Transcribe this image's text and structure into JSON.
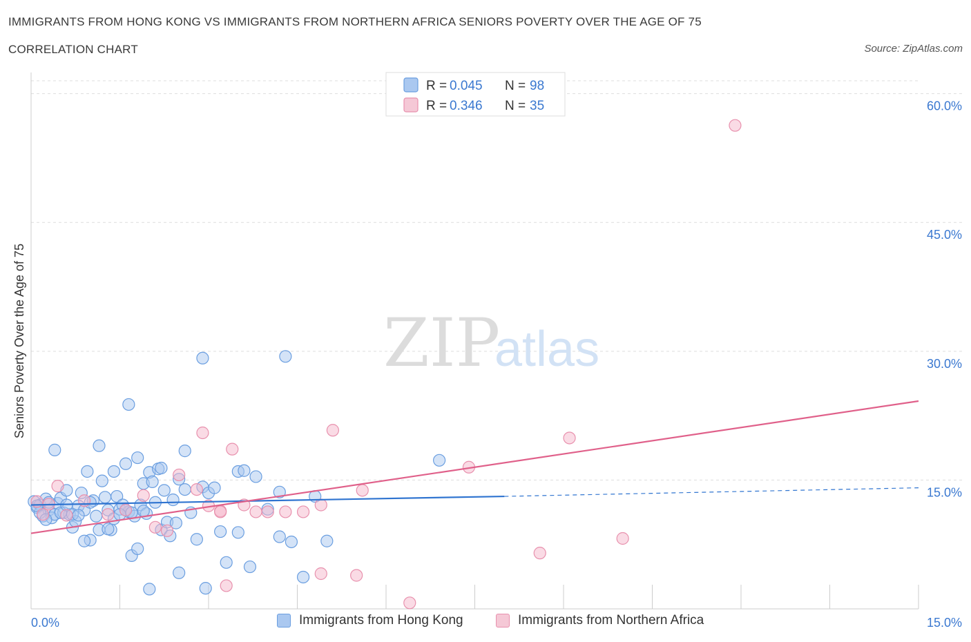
{
  "header": {
    "title": "IMMIGRANTS FROM HONG KONG VS IMMIGRANTS FROM NORTHERN AFRICA SENIORS POVERTY OVER THE AGE OF 75",
    "subtitle": "CORRELATION CHART",
    "source": "Source: ZipAtlas.com"
  },
  "watermark": {
    "zip": "ZIP",
    "atlas": "atlas"
  },
  "legend_top": [
    {
      "r_label": "R = ",
      "r_value": "0.045",
      "n_label": "N = ",
      "n_value": "98"
    },
    {
      "r_label": "R = ",
      "r_value": "0.346",
      "n_label": "N = ",
      "n_value": "35"
    }
  ],
  "legend_bottom": [
    {
      "label": "Immigrants from Hong Kong"
    },
    {
      "label": "Immigrants from Northern Africa"
    }
  ],
  "colors": {
    "blue_fill": "#aac8f0",
    "blue_stroke": "#6a9ee0",
    "blue_line": "#2f74d0",
    "pink_fill": "#f5b8cb",
    "pink_stroke": "#e890ad",
    "pink_line": "#e0608a",
    "axis_text": "#3a78d0",
    "grid": "#dddddd"
  },
  "chart_data": {
    "type": "scatter",
    "title": "IMMIGRANTS FROM HONG KONG VS IMMIGRANTS FROM NORTHERN AFRICA SENIORS POVERTY OVER THE AGE OF 75",
    "xlabel": "",
    "ylabel": "Seniors Poverty Over the Age of 75",
    "xlim": [
      0,
      15
    ],
    "ylim": [
      0,
      60
    ],
    "x_tick_labels": [
      "0.0%",
      "15.0%"
    ],
    "y_ticks": [
      15,
      30,
      45,
      60
    ],
    "y_tick_labels": [
      "15.0%",
      "30.0%",
      "45.0%",
      "60.0%"
    ],
    "grid": true,
    "legend_position": "top-center",
    "series": [
      {
        "name": "Immigrants from Hong Kong",
        "points": [
          [
            0.05,
            12.5
          ],
          [
            0.1,
            11.8
          ],
          [
            0.15,
            12.1
          ],
          [
            0.2,
            10.8
          ],
          [
            0.25,
            12.8
          ],
          [
            0.3,
            11.5
          ],
          [
            0.35,
            10.6
          ],
          [
            0.4,
            11.0
          ],
          [
            0.45,
            12.3
          ],
          [
            0.5,
            12.9
          ],
          [
            0.55,
            11.2
          ],
          [
            0.6,
            13.8
          ],
          [
            0.65,
            11.0
          ],
          [
            0.7,
            9.5
          ],
          [
            0.75,
            10.2
          ],
          [
            0.8,
            12.0
          ],
          [
            0.85,
            13.5
          ],
          [
            0.9,
            11.5
          ],
          [
            0.95,
            16.0
          ],
          [
            1.0,
            8.0
          ],
          [
            1.05,
            12.6
          ],
          [
            1.1,
            10.8
          ],
          [
            1.15,
            9.2
          ],
          [
            1.2,
            14.9
          ],
          [
            1.25,
            13.0
          ],
          [
            1.3,
            11.5
          ],
          [
            1.35,
            9.2
          ],
          [
            1.4,
            10.5
          ],
          [
            1.45,
            13.1
          ],
          [
            1.5,
            11.6
          ],
          [
            1.55,
            12.1
          ],
          [
            1.6,
            16.9
          ],
          [
            1.65,
            11.3
          ],
          [
            1.7,
            6.2
          ],
          [
            1.75,
            10.8
          ],
          [
            1.8,
            7.0
          ],
          [
            1.85,
            12.1
          ],
          [
            1.9,
            14.6
          ],
          [
            1.95,
            11.1
          ],
          [
            2.0,
            15.9
          ],
          [
            2.05,
            14.8
          ],
          [
            2.1,
            12.4
          ],
          [
            2.15,
            16.3
          ],
          [
            2.2,
            9.2
          ],
          [
            2.25,
            13.8
          ],
          [
            2.3,
            10.1
          ],
          [
            2.35,
            8.5
          ],
          [
            2.4,
            12.7
          ],
          [
            2.5,
            15.1
          ],
          [
            2.6,
            13.9
          ],
          [
            2.7,
            11.2
          ],
          [
            2.8,
            8.1
          ],
          [
            2.9,
            14.2
          ],
          [
            3.0,
            13.5
          ],
          [
            3.1,
            14.1
          ],
          [
            3.2,
            9.0
          ],
          [
            3.3,
            5.4
          ],
          [
            3.5,
            16.0
          ],
          [
            3.7,
            4.9
          ],
          [
            3.8,
            15.4
          ],
          [
            4.0,
            11.6
          ],
          [
            4.2,
            13.6
          ],
          [
            4.4,
            7.8
          ],
          [
            4.6,
            3.7
          ],
          [
            4.8,
            13.1
          ],
          [
            5.0,
            7.9
          ],
          [
            6.9,
            17.3
          ],
          [
            4.3,
            29.4
          ],
          [
            2.9,
            29.2
          ],
          [
            1.65,
            23.8
          ],
          [
            0.4,
            18.5
          ],
          [
            1.15,
            19.0
          ],
          [
            2.6,
            18.4
          ],
          [
            1.8,
            17.6
          ],
          [
            1.4,
            16.0
          ],
          [
            3.6,
            16.1
          ],
          [
            2.0,
            2.3
          ],
          [
            2.95,
            2.4
          ],
          [
            2.5,
            4.2
          ],
          [
            0.15,
            11.2
          ],
          [
            0.25,
            10.4
          ],
          [
            0.5,
            11.2
          ],
          [
            0.7,
            11.0
          ],
          [
            0.9,
            7.9
          ],
          [
            1.3,
            9.3
          ],
          [
            1.6,
            11.5
          ],
          [
            1.9,
            11.4
          ],
          [
            2.2,
            16.4
          ],
          [
            3.5,
            8.9
          ],
          [
            4.2,
            8.4
          ],
          [
            0.1,
            12.0
          ],
          [
            0.3,
            12.4
          ],
          [
            0.6,
            12.1
          ],
          [
            0.8,
            10.9
          ],
          [
            1.0,
            12.4
          ],
          [
            1.5,
            11.0
          ],
          [
            2.45,
            10.0
          ],
          [
            1.7,
            11.2
          ]
        ]
      },
      {
        "name": "Immigrants from Northern Africa",
        "points": [
          [
            0.1,
            12.5
          ],
          [
            0.2,
            11.0
          ],
          [
            0.3,
            12.2
          ],
          [
            0.45,
            14.3
          ],
          [
            0.6,
            10.9
          ],
          [
            0.9,
            12.6
          ],
          [
            1.3,
            11.0
          ],
          [
            1.6,
            11.5
          ],
          [
            1.9,
            13.2
          ],
          [
            2.1,
            9.5
          ],
          [
            2.3,
            9.1
          ],
          [
            2.5,
            15.6
          ],
          [
            2.8,
            13.9
          ],
          [
            2.9,
            20.5
          ],
          [
            3.0,
            12.0
          ],
          [
            3.2,
            11.4
          ],
          [
            3.4,
            18.6
          ],
          [
            3.6,
            12.1
          ],
          [
            3.8,
            11.3
          ],
          [
            4.0,
            11.3
          ],
          [
            4.3,
            11.3
          ],
          [
            4.6,
            11.3
          ],
          [
            4.9,
            12.1
          ],
          [
            5.1,
            20.8
          ],
          [
            5.6,
            13.8
          ],
          [
            5.5,
            3.9
          ],
          [
            4.9,
            4.1
          ],
          [
            3.3,
            2.7
          ],
          [
            6.4,
            0.7
          ],
          [
            7.4,
            16.5
          ],
          [
            8.6,
            6.5
          ],
          [
            9.1,
            19.9
          ],
          [
            10.0,
            8.2
          ],
          [
            11.9,
            56.3
          ],
          [
            3.2,
            11.3
          ]
        ]
      }
    ],
    "trend_lines": [
      {
        "series": "Immigrants from Hong Kong",
        "solid": [
          [
            0,
            12.1
          ],
          [
            8.0,
            13.1
          ]
        ],
        "dashed": [
          [
            8.0,
            13.1
          ],
          [
            15.0,
            14.1
          ]
        ]
      },
      {
        "series": "Immigrants from Northern Africa",
        "solid": [
          [
            0,
            8.8
          ],
          [
            15.0,
            24.2
          ]
        ]
      }
    ]
  }
}
